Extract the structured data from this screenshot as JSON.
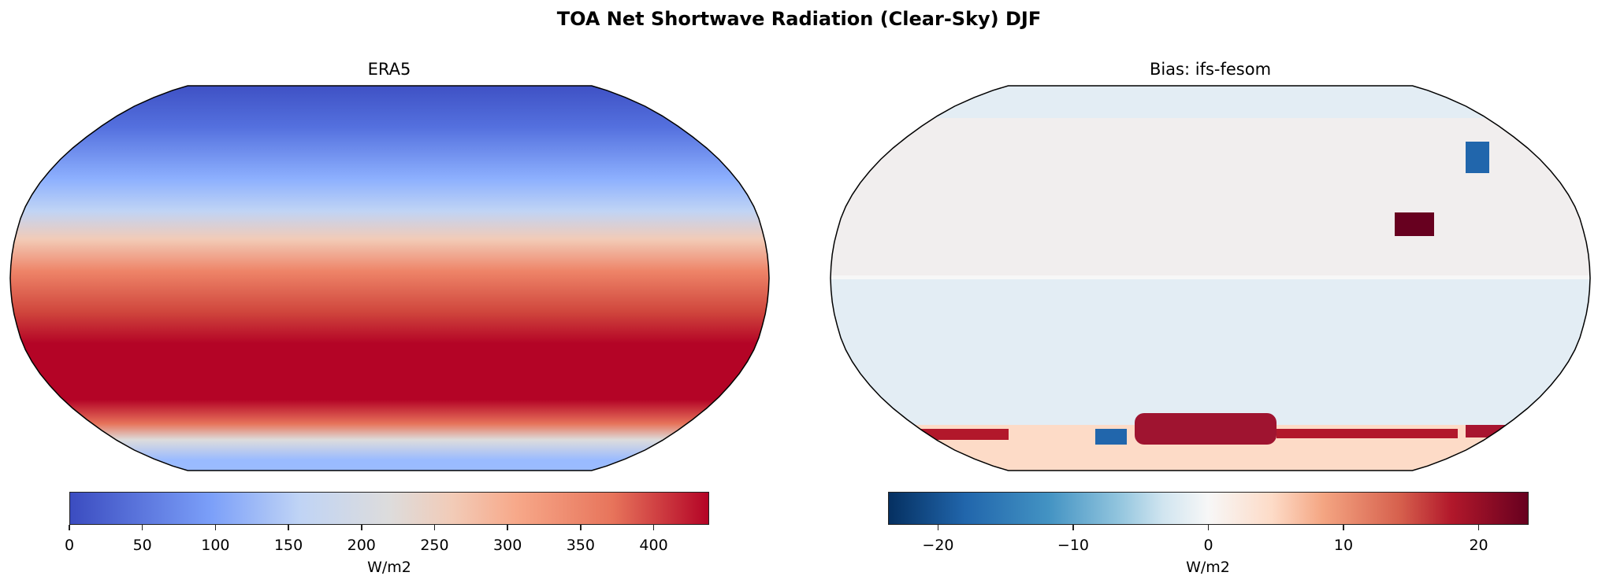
{
  "title": "TOA Net Shortwave Radiation (Clear-Sky) DJF",
  "colors": {
    "coolwarm": [
      "#3b4cc0",
      "#7b9ff9",
      "#c0d4f5",
      "#dddcdc",
      "#f2cbb7",
      "#ee8468",
      "#b40426"
    ],
    "rdbu_r": [
      "#053061",
      "#2166ac",
      "#4393c3",
      "#92c5de",
      "#d1e5f0",
      "#f7f7f7",
      "#fddbc7",
      "#f4a582",
      "#d6604d",
      "#b2182b",
      "#67001f"
    ]
  },
  "chart_data": [
    {
      "type": "heatmap",
      "title": "ERA5",
      "projection": "Robinson",
      "colormap": "coolwarm",
      "colorbar": {
        "label": "W/m2",
        "range": [
          0,
          438
        ],
        "ticks": [
          0,
          50,
          100,
          150,
          200,
          250,
          300,
          350,
          400
        ]
      }
    },
    {
      "type": "heatmap",
      "title": "Bias: ifs-fesom",
      "projection": "Robinson",
      "colormap": "RdBu_r",
      "colorbar": {
        "label": "W/m2",
        "range": [
          -23.7,
          23.7
        ],
        "ticks": [
          -20,
          -10,
          0,
          10,
          20
        ],
        "tick_labels": [
          "−20",
          "−10",
          "0",
          "10",
          "20"
        ]
      }
    }
  ]
}
